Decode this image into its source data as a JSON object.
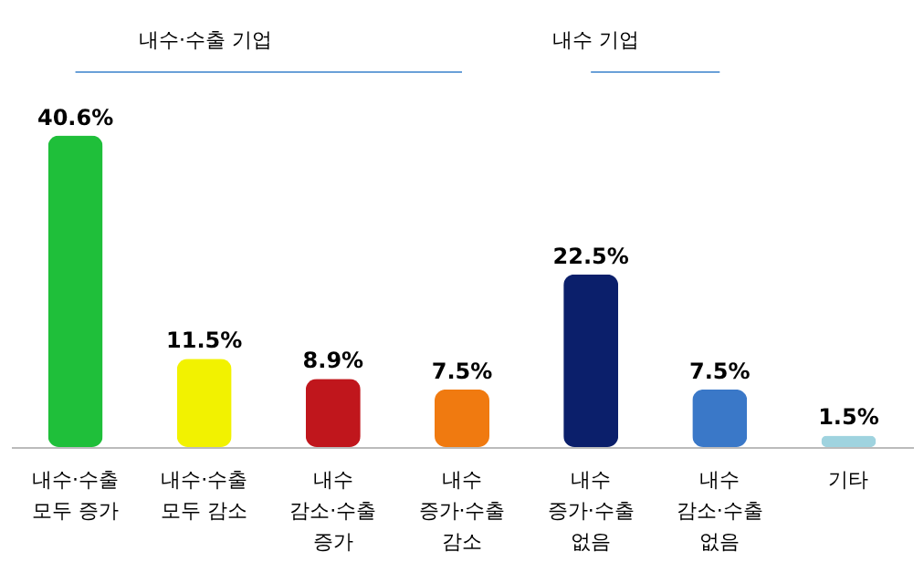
{
  "chart_data": {
    "type": "bar",
    "categories": [
      "내수·수출\n모두 증가",
      "내수·수출\n모두 감소",
      "내수\n감소·수출\n증가",
      "내수\n증가·수출\n감소",
      "내수\n증가·수출\n없음",
      "내수\n감소·수출\n없음",
      "기타"
    ],
    "values": [
      40.6,
      11.5,
      8.9,
      7.5,
      22.5,
      7.5,
      1.5
    ],
    "colors": [
      "#1fbf3a",
      "#f2f200",
      "#c0161c",
      "#f07a10",
      "#0b1f6b",
      "#3a78c8",
      "#9fd3df"
    ],
    "value_labels": [
      "40.6%",
      "11.5%",
      "8.9%",
      "7.5%",
      "22.5%",
      "7.5%",
      "1.5%"
    ],
    "annotations": [
      "내수·수출 기업",
      "내수 기업"
    ],
    "grid": false
  }
}
